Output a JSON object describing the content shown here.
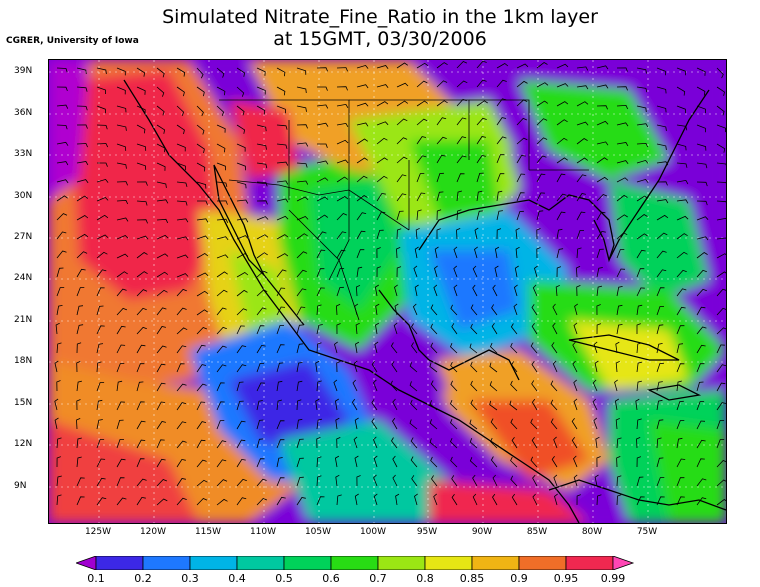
{
  "title_line1": "Simulated Nitrate_Fine_Ratio in the 1km layer",
  "title_line2": "at 15GMT, 03/30/2006",
  "credit": "CGRER, University of Iowa",
  "lat_labels": [
    "39N",
    "36N",
    "33N",
    "30N",
    "27N",
    "24N",
    "21N",
    "18N",
    "15N",
    "12N",
    "9N"
  ],
  "lon_labels": [
    "125W",
    "120W",
    "115W",
    "110W",
    "105W",
    "100W",
    "95W",
    "90W",
    "85W",
    "80W",
    "75W"
  ],
  "colorbar": {
    "labels": [
      "0.1",
      "0.2",
      "0.3",
      "0.4",
      "0.5",
      "0.6",
      "0.7",
      "0.8",
      "0.85",
      "0.9",
      "0.95",
      "0.99"
    ],
    "colors": [
      "#a000d0",
      "#3c28e6",
      "#1e78ff",
      "#00b4e6",
      "#00c8a0",
      "#00d25a",
      "#28dc14",
      "#9be614",
      "#e6e614",
      "#f0b414",
      "#f06e28",
      "#f02850",
      "#ff46b4"
    ]
  }
}
